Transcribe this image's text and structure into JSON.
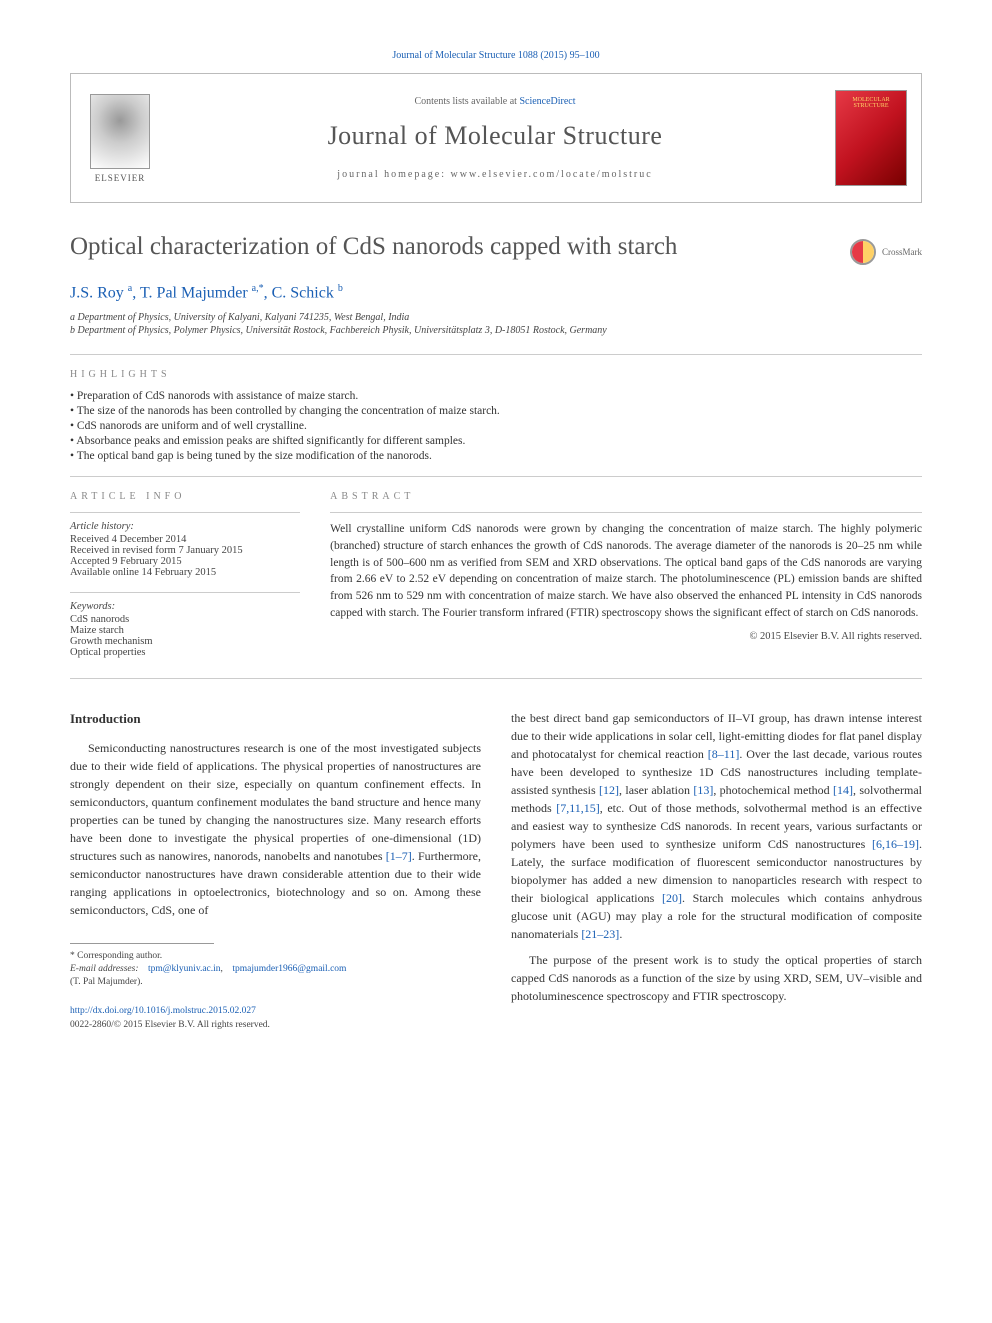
{
  "citation": "Journal of Molecular Structure 1088 (2015) 95–100",
  "header": {
    "contents_prefix": "Contents lists available at ",
    "contents_link": "ScienceDirect",
    "journal_name": "Journal of Molecular Structure",
    "homepage_label": "journal homepage: www.elsevier.com/locate/molstruc",
    "publisher_label": "ELSEVIER",
    "cover_text": "MOLECULAR STRUCTURE"
  },
  "article": {
    "title": "Optical characterization of CdS nanorods capped with starch",
    "crossmark_label": "CrossMark",
    "authors_html": "J.S. Roy <sup>a</sup>, T. Pal Majumder <sup>a,*</sup>, C. Schick <sup>b</sup>",
    "affiliations": [
      "a Department of Physics, University of Kalyani, Kalyani 741235, West Bengal, India",
      "b Department of Physics, Polymer Physics, Universität Rostock, Fachbereich Physik, Universitätsplatz 3, D-18051 Rostock, Germany"
    ]
  },
  "highlights": {
    "label": "HIGHLIGHTS",
    "items": [
      "Preparation of CdS nanorods with assistance of maize starch.",
      "The size of the nanorods has been controlled by changing the concentration of maize starch.",
      "CdS nanorods are uniform and of well crystalline.",
      "Absorbance peaks and emission peaks are shifted significantly for different samples.",
      "The optical band gap is being tuned by the size modification of the nanorods."
    ]
  },
  "article_info": {
    "label": "ARTICLE INFO",
    "history_label": "Article history:",
    "history": [
      "Received 4 December 2014",
      "Received in revised form 7 January 2015",
      "Accepted 9 February 2015",
      "Available online 14 February 2015"
    ],
    "keywords_label": "Keywords:",
    "keywords": [
      "CdS nanorods",
      "Maize starch",
      "Growth mechanism",
      "Optical properties"
    ]
  },
  "abstract": {
    "label": "ABSTRACT",
    "text": "Well crystalline uniform CdS nanorods were grown by changing the concentration of maize starch. The highly polymeric (branched) structure of starch enhances the growth of CdS nanorods. The average diameter of the nanorods is 20–25 nm while length is of 500–600 nm as verified from SEM and XRD observations. The optical band gaps of the CdS nanorods are varying from 2.66 eV to 2.52 eV depending on concentration of maize starch. The photoluminescence (PL) emission bands are shifted from 526 nm to 529 nm with concentration of maize starch. We have also observed the enhanced PL intensity in CdS nanorods capped with starch. The Fourier transform infrared (FTIR) spectroscopy shows the significant effect of starch on CdS nanorods.",
    "copyright": "© 2015 Elsevier B.V. All rights reserved."
  },
  "body": {
    "intro_heading": "Introduction",
    "col1_p1a": "Semiconducting nanostructures research is one of the most investigated subjects due to their wide field of applications. The physical properties of nanostructures are strongly dependent on their size, especially on quantum confinement effects. In semiconductors, quantum confinement modulates the band structure and hence many properties can be tuned by changing the nanostructures size. Many research efforts have been done to investigate the physical properties of one-dimensional (1D) structures such as nanowires, nanorods, nanobelts and nanotubes ",
    "ref1": "[1–7]",
    "col1_p1b": ". Furthermore, semiconductor nanostructures have drawn considerable attention due to their wide ranging applications in optoelectronics, biotechnology and so on. Among these semiconductors, CdS, one of",
    "col2_p1a": "the best direct band gap semiconductors of II–VI group, has drawn intense interest due to their wide applications in solar cell, light-emitting diodes for flat panel display and photocatalyst for chemical reaction ",
    "ref2": "[8–11]",
    "col2_p1b": ". Over the last decade, various routes have been developed to synthesize 1D CdS nanostructures including template-assisted synthesis ",
    "ref3": "[12]",
    "col2_p1c": ", laser ablation ",
    "ref4": "[13]",
    "col2_p1d": ", photochemical method ",
    "ref5": "[14]",
    "col2_p1e": ", solvothermal methods ",
    "ref6": "[7,11,15]",
    "col2_p1f": ", etc. Out of those methods, solvothermal method is an effective and easiest way to synthesize CdS nanorods. In recent years, various surfactants or polymers have been used to synthesize uniform CdS nanostructures ",
    "ref7": "[6,16–19]",
    "col2_p1g": ". Lately, the surface modification of fluorescent semiconductor nanostructures by biopolymer has added a new dimension to nanoparticles research with respect to their biological applications ",
    "ref8": "[20]",
    "col2_p1h": ". Starch molecules which contains anhydrous glucose unit (AGU) may play a role for the structural modification of composite nanomaterials ",
    "ref9": "[21–23]",
    "col2_p1i": ".",
    "col2_p2": "The purpose of the present work is to study the optical properties of starch capped CdS nanorods as a function of the size by using XRD, SEM, UV–visible and photoluminescence spectroscopy and FTIR spectroscopy."
  },
  "footnote": {
    "corresponding": "* Corresponding author.",
    "email_label": "E-mail addresses:",
    "email1": "tpm@klyuniv.ac.in",
    "email2": "tpmajumder1966@gmail.com",
    "email_owner": "(T. Pal Majumder).",
    "doi": "http://dx.doi.org/10.1016/j.molstruc.2015.02.027",
    "issn_copy": "0022-2860/© 2015 Elsevier B.V. All rights reserved."
  },
  "colors": {
    "link": "#1a5fb4",
    "text": "#333333",
    "muted": "#888888",
    "rule": "#cccccc"
  }
}
